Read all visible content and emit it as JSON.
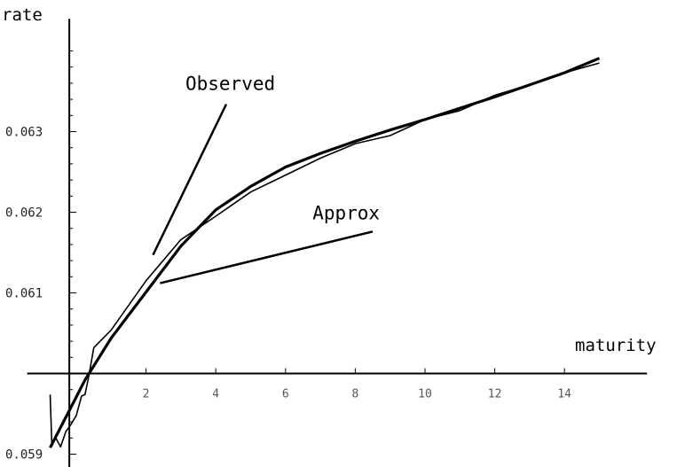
{
  "chart_data": {
    "type": "line",
    "xlabel": "maturity",
    "ylabel": "rate",
    "xlim": [
      -0.9,
      15.5
    ],
    "ylim": [
      0.0589,
      0.0644
    ],
    "x_crosses_y_at": 0.06,
    "xticks": [
      2,
      4,
      6,
      8,
      10,
      12,
      14
    ],
    "yticks": [
      0.059,
      0.061,
      0.062,
      0.063
    ],
    "xtick_labels": [
      "2",
      "4",
      "6",
      "8",
      "10",
      "12",
      "14"
    ],
    "ytick_labels": [
      "0.059",
      "0.061",
      "0.062",
      "0.063"
    ],
    "grid": false,
    "series": [
      {
        "name": "Observed",
        "style": "thin",
        "x": [
          -0.75,
          -0.7,
          -0.6,
          -0.45,
          -0.3,
          -0.15,
          0.0,
          0.15,
          0.25,
          0.35,
          0.5,
          1.0,
          2.0,
          3.0,
          4.0,
          5.0,
          6.0,
          7.0,
          8.0,
          9.0,
          10.0,
          11.0,
          12.0,
          13.0,
          14.0,
          15.0
        ],
        "y": [
          0.05974,
          0.0591,
          0.05921,
          0.05909,
          0.05928,
          0.05937,
          0.05948,
          0.05972,
          0.05974,
          0.05995,
          0.06032,
          0.06054,
          0.06115,
          0.06166,
          0.06195,
          0.06225,
          0.06246,
          0.06267,
          0.06285,
          0.06295,
          0.06315,
          0.06326,
          0.06345,
          0.06358,
          0.06373,
          0.06385
        ]
      },
      {
        "name": "Approx",
        "style": "thick",
        "x": [
          -0.75,
          -0.25,
          0.25,
          1.0,
          2.0,
          3.0,
          4.0,
          5.0,
          6.0,
          7.0,
          8.0,
          9.0,
          10.0,
          11.0,
          12.0,
          13.0,
          14.0,
          15.0
        ],
        "y": [
          0.05908,
          0.0595,
          0.05992,
          0.06044,
          0.06101,
          0.06158,
          0.06203,
          0.06232,
          0.06256,
          0.06273,
          0.06288,
          0.06302,
          0.06315,
          0.06329,
          0.06343,
          0.06358,
          0.06373,
          0.06391
        ]
      }
    ],
    "annotations": [
      {
        "text": "Observed",
        "points_to": "Observed",
        "target": [
          2.2,
          0.06147
        ],
        "label_at": [
          4.3,
          0.06334
        ]
      },
      {
        "text": "Approx",
        "points_to": "Approx",
        "target": [
          2.4,
          0.06112
        ],
        "label_at": [
          8.5,
          0.06176
        ]
      }
    ]
  }
}
